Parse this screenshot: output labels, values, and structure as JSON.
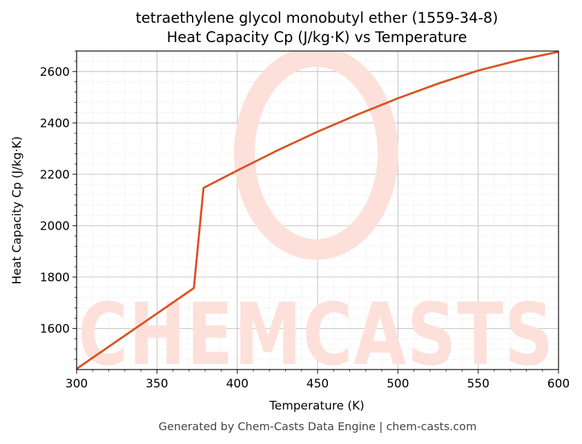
{
  "chart_data": {
    "type": "line",
    "title_line1": "tetraethylene glycol monobutyl ether (1559-34-8)",
    "title_line2": "Heat Capacity Cp (J/kg·K) vs Temperature",
    "xlabel": "Temperature (K)",
    "ylabel": "Heat Capacity Cp (J/kg·K)",
    "xlim": [
      300,
      600
    ],
    "ylim": [
      1440,
      2680
    ],
    "xticks": [
      300,
      350,
      400,
      450,
      500,
      550,
      600
    ],
    "yticks": [
      1600,
      1800,
      2000,
      2200,
      2400,
      2600
    ],
    "grid": true,
    "series": [
      {
        "color": "#d95323",
        "x": [
          300,
          373,
          379,
          400,
          425,
          450,
          475,
          500,
          525,
          550,
          575,
          600
        ],
        "y": [
          1443,
          1757,
          2147,
          2215,
          2293,
          2366,
          2433,
          2496,
          2553,
          2604,
          2644,
          2677
        ]
      }
    ]
  },
  "watermark": {
    "text": "CHEMCASTS",
    "color": "#fde0da"
  },
  "footer": "Generated by Chem-Casts Data Engine | chem-casts.com"
}
